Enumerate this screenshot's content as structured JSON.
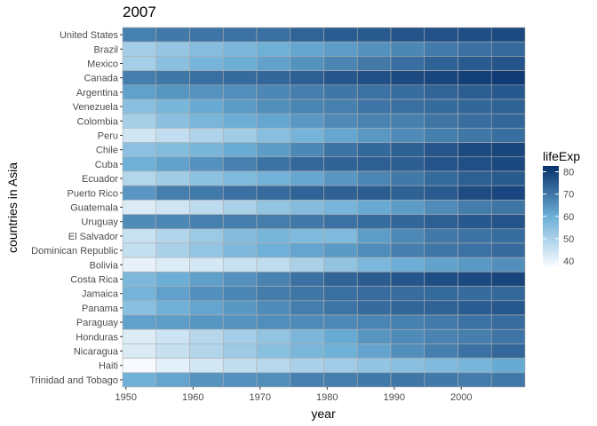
{
  "chart_data": {
    "type": "heatmap",
    "title": "2007",
    "xlabel": "year",
    "ylabel": "countries in Asia",
    "x_ticks": [
      1950,
      1960,
      1970,
      1980,
      1990,
      2000
    ],
    "years": [
      1952,
      1957,
      1962,
      1967,
      1972,
      1977,
      1982,
      1987,
      1992,
      1997,
      2002,
      2007
    ],
    "xlim": [
      1949.5,
      2009.5
    ],
    "legend": {
      "title": "lifeExp",
      "ticks": [
        40,
        50,
        60,
        70,
        80
      ],
      "min": 37.6,
      "max": 82.6,
      "position": "right"
    },
    "colors": {
      "low": "#f7fbff",
      "mid": "#6baed6",
      "high": "#08306b",
      "grid": "#b0b0b0"
    },
    "countries": [
      "United States",
      "Brazil",
      "Mexico",
      "Canada",
      "Argentina",
      "Venezuela",
      "Colombia",
      "Peru",
      "Chile",
      "Cuba",
      "Ecuador",
      "Puerto Rico",
      "Guatemala",
      "Uruguay",
      "El Salvador",
      "Dominican Republic",
      "Bolivia",
      "Costa Rica",
      "Jamaica",
      "Panama",
      "Paraguay",
      "Honduras",
      "Nicaragua",
      "Haiti",
      "Trinidad and Tobago"
    ],
    "values": [
      [
        68.4,
        69.5,
        70.2,
        70.8,
        71.3,
        73.4,
        74.7,
        75.0,
        76.1,
        76.8,
        77.3,
        78.2
      ],
      [
        50.9,
        53.3,
        55.7,
        57.6,
        59.5,
        61.5,
        63.3,
        65.2,
        67.1,
        69.4,
        71.0,
        72.4
      ],
      [
        50.8,
        55.2,
        58.3,
        60.1,
        62.4,
        65.0,
        67.4,
        69.5,
        71.5,
        73.7,
        74.9,
        76.2
      ],
      [
        68.8,
        70.0,
        71.3,
        72.1,
        72.9,
        74.2,
        75.8,
        76.9,
        78.0,
        78.6,
        79.8,
        80.7
      ],
      [
        62.5,
        64.4,
        65.1,
        65.6,
        67.1,
        68.5,
        69.9,
        70.8,
        71.9,
        73.3,
        74.3,
        75.3
      ],
      [
        55.1,
        57.9,
        60.8,
        63.5,
        65.7,
        67.5,
        68.3,
        70.2,
        71.2,
        72.1,
        72.8,
        73.7
      ],
      [
        50.6,
        55.1,
        57.9,
        60.0,
        61.6,
        63.8,
        66.7,
        67.8,
        68.4,
        70.3,
        71.7,
        72.9
      ],
      [
        43.9,
        46.3,
        49.1,
        51.4,
        55.4,
        58.4,
        61.4,
        64.1,
        66.5,
        68.4,
        69.9,
        71.4
      ],
      [
        54.7,
        56.1,
        57.9,
        60.5,
        63.4,
        67.1,
        70.6,
        72.5,
        74.1,
        75.8,
        77.9,
        78.6
      ],
      [
        59.4,
        62.3,
        65.2,
        68.3,
        70.7,
        72.6,
        73.7,
        74.2,
        74.4,
        76.2,
        77.2,
        78.3
      ],
      [
        48.4,
        51.4,
        54.6,
        56.7,
        58.8,
        61.3,
        64.3,
        67.2,
        69.6,
        72.3,
        74.2,
        75.0
      ],
      [
        64.3,
        68.5,
        69.6,
        71.1,
        72.2,
        73.4,
        73.8,
        74.6,
        73.9,
        74.9,
        77.8,
        78.7
      ],
      [
        42.0,
        44.1,
        47.0,
        50.0,
        53.7,
        56.0,
        58.1,
        60.8,
        63.4,
        66.3,
        68.98,
        70.3
      ],
      [
        66.1,
        67.0,
        68.3,
        68.5,
        68.7,
        69.5,
        70.8,
        71.9,
        72.8,
        74.2,
        75.3,
        76.4
      ],
      [
        45.3,
        48.6,
        52.3,
        55.9,
        58.2,
        56.7,
        56.6,
        63.2,
        66.8,
        69.5,
        70.7,
        71.9
      ],
      [
        45.9,
        49.8,
        53.5,
        56.8,
        59.6,
        61.8,
        63.7,
        66.0,
        68.5,
        69.96,
        70.8,
        72.2
      ],
      [
        40.4,
        41.9,
        43.4,
        45.0,
        46.7,
        50.0,
        53.9,
        57.3,
        59.96,
        62.1,
        63.9,
        65.6
      ],
      [
        57.2,
        60.0,
        62.8,
        65.4,
        67.8,
        70.8,
        73.4,
        74.8,
        75.7,
        77.3,
        78.1,
        78.8
      ],
      [
        58.5,
        62.6,
        65.6,
        67.5,
        69.0,
        70.1,
        71.2,
        71.8,
        71.8,
        72.3,
        72.0,
        72.6
      ],
      [
        55.2,
        59.2,
        61.8,
        64.1,
        66.2,
        68.7,
        70.5,
        72.0,
        73.0,
        73.7,
        74.7,
        75.5
      ],
      [
        62.6,
        63.2,
        64.4,
        64.95,
        65.8,
        66.4,
        66.9,
        67.4,
        68.2,
        69.4,
        70.8,
        71.8
      ],
      [
        41.9,
        44.7,
        48.0,
        50.9,
        53.9,
        57.4,
        60.9,
        64.5,
        66.4,
        67.7,
        68.6,
        70.2
      ],
      [
        42.3,
        45.4,
        48.6,
        51.9,
        55.2,
        57.5,
        59.3,
        62.0,
        65.8,
        68.4,
        70.8,
        72.9
      ],
      [
        37.6,
        40.7,
        43.6,
        46.2,
        48.0,
        49.9,
        51.5,
        53.6,
        55.1,
        56.7,
        58.1,
        60.9
      ],
      [
        59.1,
        61.8,
        64.9,
        65.4,
        65.9,
        68.3,
        68.8,
        69.6,
        69.9,
        69.5,
        68.98,
        69.8
      ]
    ]
  }
}
